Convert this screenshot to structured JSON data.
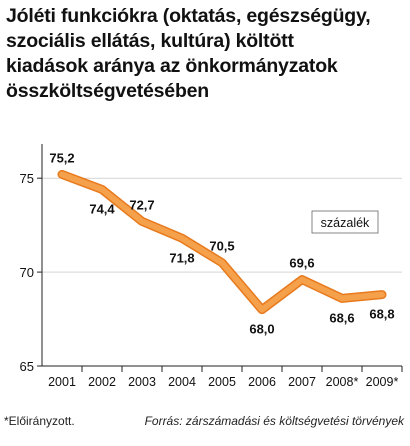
{
  "title_lines": [
    "Jóléti funkciókra (oktatás, egészségügy,",
    "szociális ellátás, kultúra) költött",
    "kiadások aránya az önkormányzatok",
    "összköltségvetésében"
  ],
  "unit_label": "százalék",
  "footnote": "*Előirányzott.",
  "source": "Forrás: zárszámadási és költségvetési törvények",
  "colors": {
    "line": "#f5a04a",
    "line_edge": "#e87a1e",
    "axis": "#222222",
    "grid": "#bbbbbb"
  },
  "chart_data": {
    "type": "line",
    "categories": [
      "2001",
      "2002",
      "2003",
      "2004",
      "2005",
      "2006",
      "2007",
      "2008*",
      "2009*"
    ],
    "values": [
      75.2,
      74.4,
      72.7,
      71.8,
      70.5,
      68.0,
      69.6,
      68.6,
      68.8
    ],
    "data_labels": [
      "75,2",
      "74,4",
      "72,7",
      "71,8",
      "70,5",
      "68,0",
      "69,6",
      "68,6",
      "68,8"
    ],
    "y_ticks": [
      65,
      70,
      75
    ],
    "ylim": [
      65,
      76.5
    ],
    "grid": true
  }
}
